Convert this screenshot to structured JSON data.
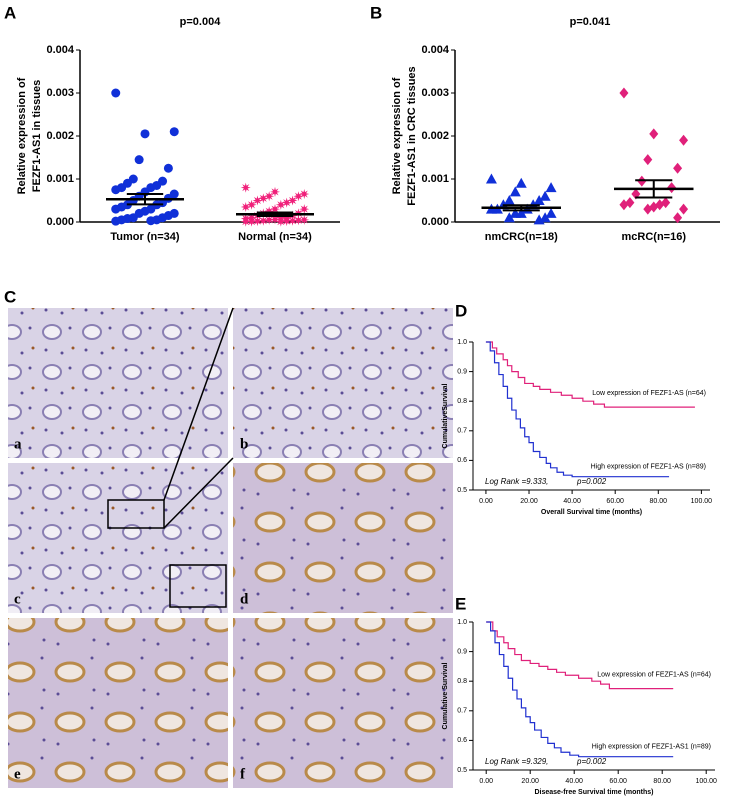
{
  "chart_data": [
    {
      "panel": "A",
      "type": "scatter",
      "title": "p=0.004",
      "ylabel": [
        "Relative expression of",
        "FEZF1-AS1 in tissues"
      ],
      "categories": [
        "Tumor (n=34)",
        "Normal (n=34)"
      ],
      "ylim": [
        0,
        0.004
      ],
      "yticks": [
        {
          "value": 0,
          "label": "0.000"
        },
        {
          "value": 0.001,
          "label": "0.001"
        },
        {
          "value": 0.002,
          "label": "0.002"
        },
        {
          "value": 0.003,
          "label": "0.003"
        },
        {
          "value": 0.004,
          "label": "0.004"
        }
      ],
      "series": [
        {
          "color": "#1030d8",
          "marker": "circle",
          "mean": 0.00053,
          "sem": 0.00012,
          "values": [
            0.003,
            0.00205,
            0.0021,
            0.00145,
            0.00125,
            0.001,
            0.00095,
            0.0009,
            0.00085,
            0.0008,
            0.0008,
            0.00075,
            0.0007,
            0.00065,
            0.0006,
            0.00055,
            0.0005,
            0.00045,
            0.0004,
            0.0004,
            0.00035,
            0.0003,
            0.0003,
            0.00025,
            0.0002,
            0.0002,
            0.00015,
            0.0001,
            0.0001,
            8e-05,
            5e-05,
            5e-05,
            3e-05,
            2e-05
          ]
        },
        {
          "color": "#f0207a",
          "marker": "star",
          "mean": 0.00018,
          "sem": 4e-05,
          "values": [
            0.0008,
            0.0007,
            0.00065,
            0.0006,
            0.0006,
            0.00055,
            0.0005,
            0.0005,
            0.00045,
            0.0004,
            0.0004,
            0.00035,
            0.0003,
            0.0003,
            0.00025,
            0.0002,
            0.0002,
            0.00015,
            0.00015,
            0.0001,
            0.0001,
            0.0001,
            8e-05,
            6e-05,
            5e-05,
            5e-05,
            4e-05,
            3e-05,
            3e-05,
            2e-05,
            2e-05,
            1e-05,
            1e-05,
            1e-05
          ]
        }
      ]
    },
    {
      "panel": "B",
      "type": "scatter",
      "title": "p=0.041",
      "ylabel": [
        "Relative expression of",
        "FEZF1-AS1 in CRC tissues"
      ],
      "categories": [
        "nmCRC(n=18)",
        "mcRC(n=16)"
      ],
      "ylim": [
        0,
        0.004
      ],
      "yticks": [
        {
          "value": 0,
          "label": "0.000"
        },
        {
          "value": 0.001,
          "label": "0.001"
        },
        {
          "value": 0.002,
          "label": "0.002"
        },
        {
          "value": 0.003,
          "label": "0.003"
        },
        {
          "value": 0.004,
          "label": "0.004"
        }
      ],
      "series": [
        {
          "color": "#1030d8",
          "marker": "triangle",
          "mean": 0.00033,
          "sem": 6e-05,
          "values": [
            0.001,
            0.0009,
            0.0008,
            0.0007,
            0.0006,
            0.0005,
            0.0005,
            0.0004,
            0.0004,
            0.0003,
            0.0003,
            0.0003,
            0.0002,
            0.0002,
            0.0002,
            0.0001,
            0.0001,
            5e-05
          ]
        },
        {
          "color": "#e0207a",
          "marker": "diamond",
          "mean": 0.00077,
          "sem": 0.0002,
          "values": [
            0.003,
            0.00205,
            0.0019,
            0.00145,
            0.00125,
            0.00095,
            0.0008,
            0.00065,
            0.00045,
            0.00045,
            0.0004,
            0.0004,
            0.00035,
            0.0003,
            0.0003,
            0.0001
          ]
        }
      ]
    },
    {
      "panel": "D",
      "type": "step",
      "ylabel": "CumulativeSurvival",
      "xlabel": "Overall Survival time (months)",
      "annotations": [
        "Log Rank =9.333,",
        "p=0.002"
      ],
      "xlim": [
        -6,
        104
      ],
      "ylim": [
        0.5,
        1.0
      ],
      "xticks": [
        {
          "value": 0,
          "label": "0.00"
        },
        {
          "value": 20,
          "label": "20.00"
        },
        {
          "value": 40,
          "label": "40.00"
        },
        {
          "value": 60,
          "label": "60.00"
        },
        {
          "value": 80,
          "label": "80.00"
        },
        {
          "value": 100,
          "label": "100.00"
        }
      ],
      "yticks": [
        0.5,
        0.6,
        0.7,
        0.8,
        0.9,
        {
          "value": 1,
          "label": "1.0"
        }
      ],
      "series": [
        {
          "name": "Low expression of FEZF1-AS (n=64)",
          "color": "#e0207a",
          "x": [
            0,
            3,
            5,
            8,
            10,
            12,
            15,
            18,
            22,
            25,
            30,
            35,
            40,
            45,
            50,
            55,
            60,
            97
          ],
          "values": [
            1,
            0.98,
            0.96,
            0.94,
            0.92,
            0.9,
            0.88,
            0.86,
            0.85,
            0.84,
            0.83,
            0.82,
            0.81,
            0.8,
            0.79,
            0.78,
            0.78,
            0.78
          ]
        },
        {
          "name": "High expression of FEZF1-AS (n=89)",
          "color": "#2030d0",
          "x": [
            0,
            2,
            4,
            6,
            8,
            10,
            12,
            14,
            16,
            18,
            20,
            22,
            25,
            28,
            30,
            33,
            36,
            40,
            85
          ],
          "values": [
            1,
            0.97,
            0.93,
            0.89,
            0.85,
            0.81,
            0.77,
            0.74,
            0.71,
            0.68,
            0.66,
            0.63,
            0.61,
            0.59,
            0.575,
            0.56,
            0.55,
            0.545,
            0.545
          ]
        }
      ]
    },
    {
      "panel": "E",
      "type": "step",
      "ylabel": "Cumulative Survival",
      "xlabel": "Disease-free Survival time (months)",
      "annotations": [
        "Log Rank =9.329,",
        "p=0.002"
      ],
      "xlim": [
        -6,
        104
      ],
      "ylim": [
        0.5,
        1.0
      ],
      "xticks": [
        {
          "value": 0,
          "label": "0.00"
        },
        {
          "value": 20,
          "label": "20.00"
        },
        {
          "value": 40,
          "label": "40.00"
        },
        {
          "value": 60,
          "label": "60.00"
        },
        {
          "value": 80,
          "label": "80.00"
        },
        {
          "value": 100,
          "label": "100.00"
        }
      ],
      "yticks": [
        0.5,
        0.6,
        0.7,
        0.8,
        0.9,
        {
          "value": 1,
          "label": "1.0"
        }
      ],
      "series": [
        {
          "name": "Low expression of FEZF1-AS (n=64)",
          "color": "#e0207a",
          "x": [
            0,
            3,
            5,
            8,
            10,
            13,
            16,
            20,
            24,
            28,
            32,
            36,
            42,
            48,
            52,
            56,
            85
          ],
          "values": [
            1,
            0.97,
            0.95,
            0.93,
            0.91,
            0.89,
            0.87,
            0.86,
            0.85,
            0.84,
            0.83,
            0.82,
            0.81,
            0.8,
            0.79,
            0.775,
            0.775
          ]
        },
        {
          "name": "High expression of FEZF1-AS1 (n=89)",
          "color": "#2030d0",
          "x": [
            0,
            2,
            4,
            6,
            8,
            10,
            12,
            14,
            16,
            18,
            20,
            22,
            25,
            28,
            31,
            34,
            38,
            42,
            85
          ],
          "values": [
            1,
            0.97,
            0.93,
            0.89,
            0.85,
            0.81,
            0.77,
            0.74,
            0.71,
            0.68,
            0.66,
            0.635,
            0.61,
            0.59,
            0.575,
            0.56,
            0.55,
            0.545,
            0.545
          ]
        }
      ]
    }
  ],
  "image_panel": {
    "panel": "C",
    "labels": [
      "a",
      "b",
      "c",
      "d",
      "e",
      "f"
    ]
  }
}
